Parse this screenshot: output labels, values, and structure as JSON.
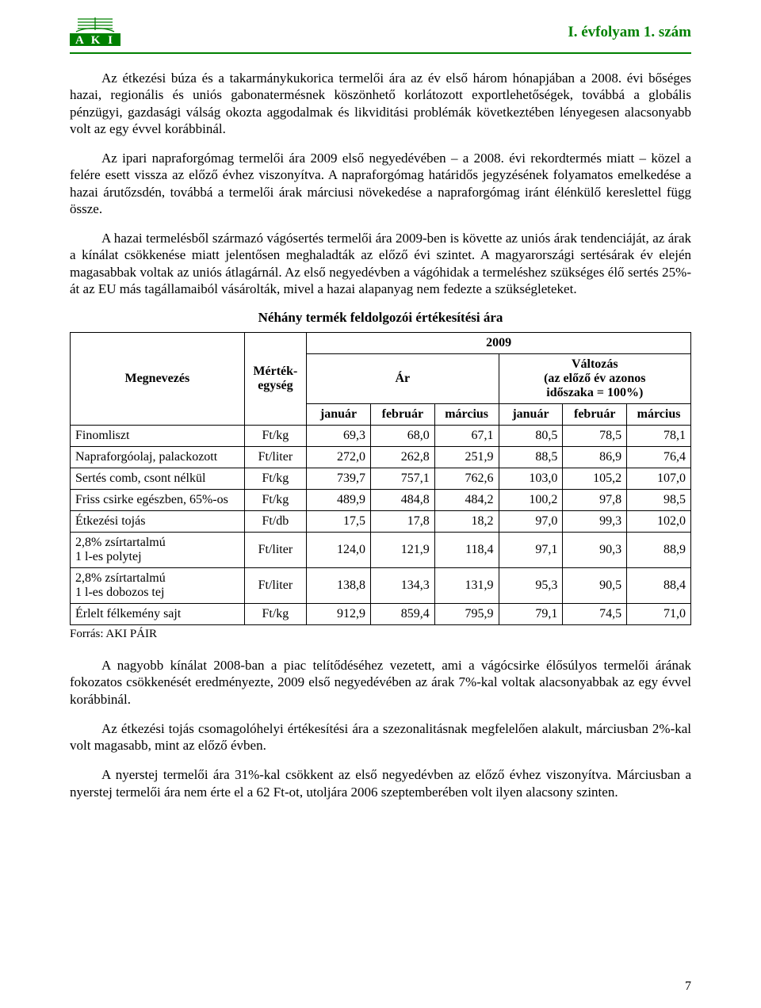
{
  "header": {
    "logo_text": "A K I",
    "title": "I. évfolyam 1. szám"
  },
  "paragraphs": {
    "p1": "Az étkezési búza és a takarmánykukorica termelői ára az év első három hónapjában a 2008. évi bőséges hazai, regionális és uniós gabonatermésnek köszönhető korlátozott exportlehetőségek, továbbá a globális pénzügyi, gazdasági válság okozta aggodalmak és likviditási problémák következtében lényegesen alacsonyabb volt az egy évvel korábbinál.",
    "p2": "Az ipari napraforgómag termelői ára 2009 első negyedévében – a 2008. évi rekordtermés miatt – közel a felére esett vissza az előző évhez viszonyítva. A napraforgómag határidős jegyzésének folyamatos emelkedése a hazai árutőzsdén, továbbá a termelői árak márciusi növekedése a napraforgómag iránt élénkülő kereslettel függ össze.",
    "p3": "A hazai termelésből származó vágósertés termelői ára 2009-ben is követte az uniós árak tendenciáját, az árak a kínálat csökkenése miatt jelentősen meghaladták az előző évi szintet. A magyarországi sertésárak év elején magasabbak voltak az uniós átlagárnál. Az első negyedévben a vágóhidak a termeléshez szükséges élő sertés 25%-át az EU más tagállamaiból vásárolták, mivel a hazai alapanyag nem fedezte a szükségleteket.",
    "p4": "A nagyobb kínálat 2008-ban a piac telítődéséhez vezetett, ami a vágócsirke élősúlyos termelői árának fokozatos csökkenését eredményezte, 2009 első negyedévében az árak 7%-kal voltak alacsonyabbak az egy évvel korábbinál.",
    "p5": "Az étkezési tojás csomagolóhelyi értékesítési ára a szezonalitásnak megfelelően alakult, márciusban 2%-kal volt magasabb, mint az előző évben.",
    "p6": "A nyerstej termelői ára 31%-kal csökkent az első negyedévben az előző évhez viszonyítva. Márciusban a nyerstej termelői ára nem érte el a 62 Ft-ot, utoljára 2006 szeptemberében volt ilyen alacsony szinten."
  },
  "table": {
    "title": "Néhány termék feldolgozói értékesítési ára",
    "headers": {
      "name": "Megnevezés",
      "unit": "Mérték-egység",
      "year": "2009",
      "price": "Ár",
      "change": "Változás\n(az előző év azonos\nidőszaka = 100%)",
      "jan": "január",
      "feb": "február",
      "mar": "március"
    },
    "rows": [
      {
        "name": "Finomliszt",
        "unit": "Ft/kg",
        "vals": [
          "69,3",
          "68,0",
          "67,1",
          "80,5",
          "78,5",
          "78,1"
        ]
      },
      {
        "name": "Napraforgóolaj, palackozott",
        "unit": "Ft/liter",
        "vals": [
          "272,0",
          "262,8",
          "251,9",
          "88,5",
          "86,9",
          "76,4"
        ]
      },
      {
        "name": "Sertés comb, csont nélkül",
        "unit": "Ft/kg",
        "vals": [
          "739,7",
          "757,1",
          "762,6",
          "103,0",
          "105,2",
          "107,0"
        ]
      },
      {
        "name": "Friss csirke egészben, 65%-os",
        "unit": "Ft/kg",
        "vals": [
          "489,9",
          "484,8",
          "484,2",
          "100,2",
          "97,8",
          "98,5"
        ]
      },
      {
        "name": "Étkezési tojás",
        "unit": "Ft/db",
        "vals": [
          "17,5",
          "17,8",
          "18,2",
          "97,0",
          "99,3",
          "102,0"
        ]
      },
      {
        "name": "2,8% zsírtartalmú\n1 l-es polytej",
        "unit": "Ft/liter",
        "vals": [
          "124,0",
          "121,9",
          "118,4",
          "97,1",
          "90,3",
          "88,9"
        ]
      },
      {
        "name": "2,8% zsírtartalmú\n1 l-es dobozos tej",
        "unit": "Ft/liter",
        "vals": [
          "138,8",
          "134,3",
          "131,9",
          "95,3",
          "90,5",
          "88,4"
        ]
      },
      {
        "name": "Érlelt félkemény sajt",
        "unit": "Ft/kg",
        "vals": [
          "912,9",
          "859,4",
          "795,9",
          "79,1",
          "74,5",
          "71,0"
        ]
      }
    ],
    "source": "Forrás: AKI PÁIR",
    "col_widths": [
      "28%",
      "10%",
      "10.3%",
      "10.3%",
      "10.3%",
      "10.3%",
      "10.3%",
      "10.3%"
    ]
  },
  "page_number": "7",
  "colors": {
    "brand_green": "#008000",
    "text": "#000000",
    "background": "#ffffff"
  }
}
